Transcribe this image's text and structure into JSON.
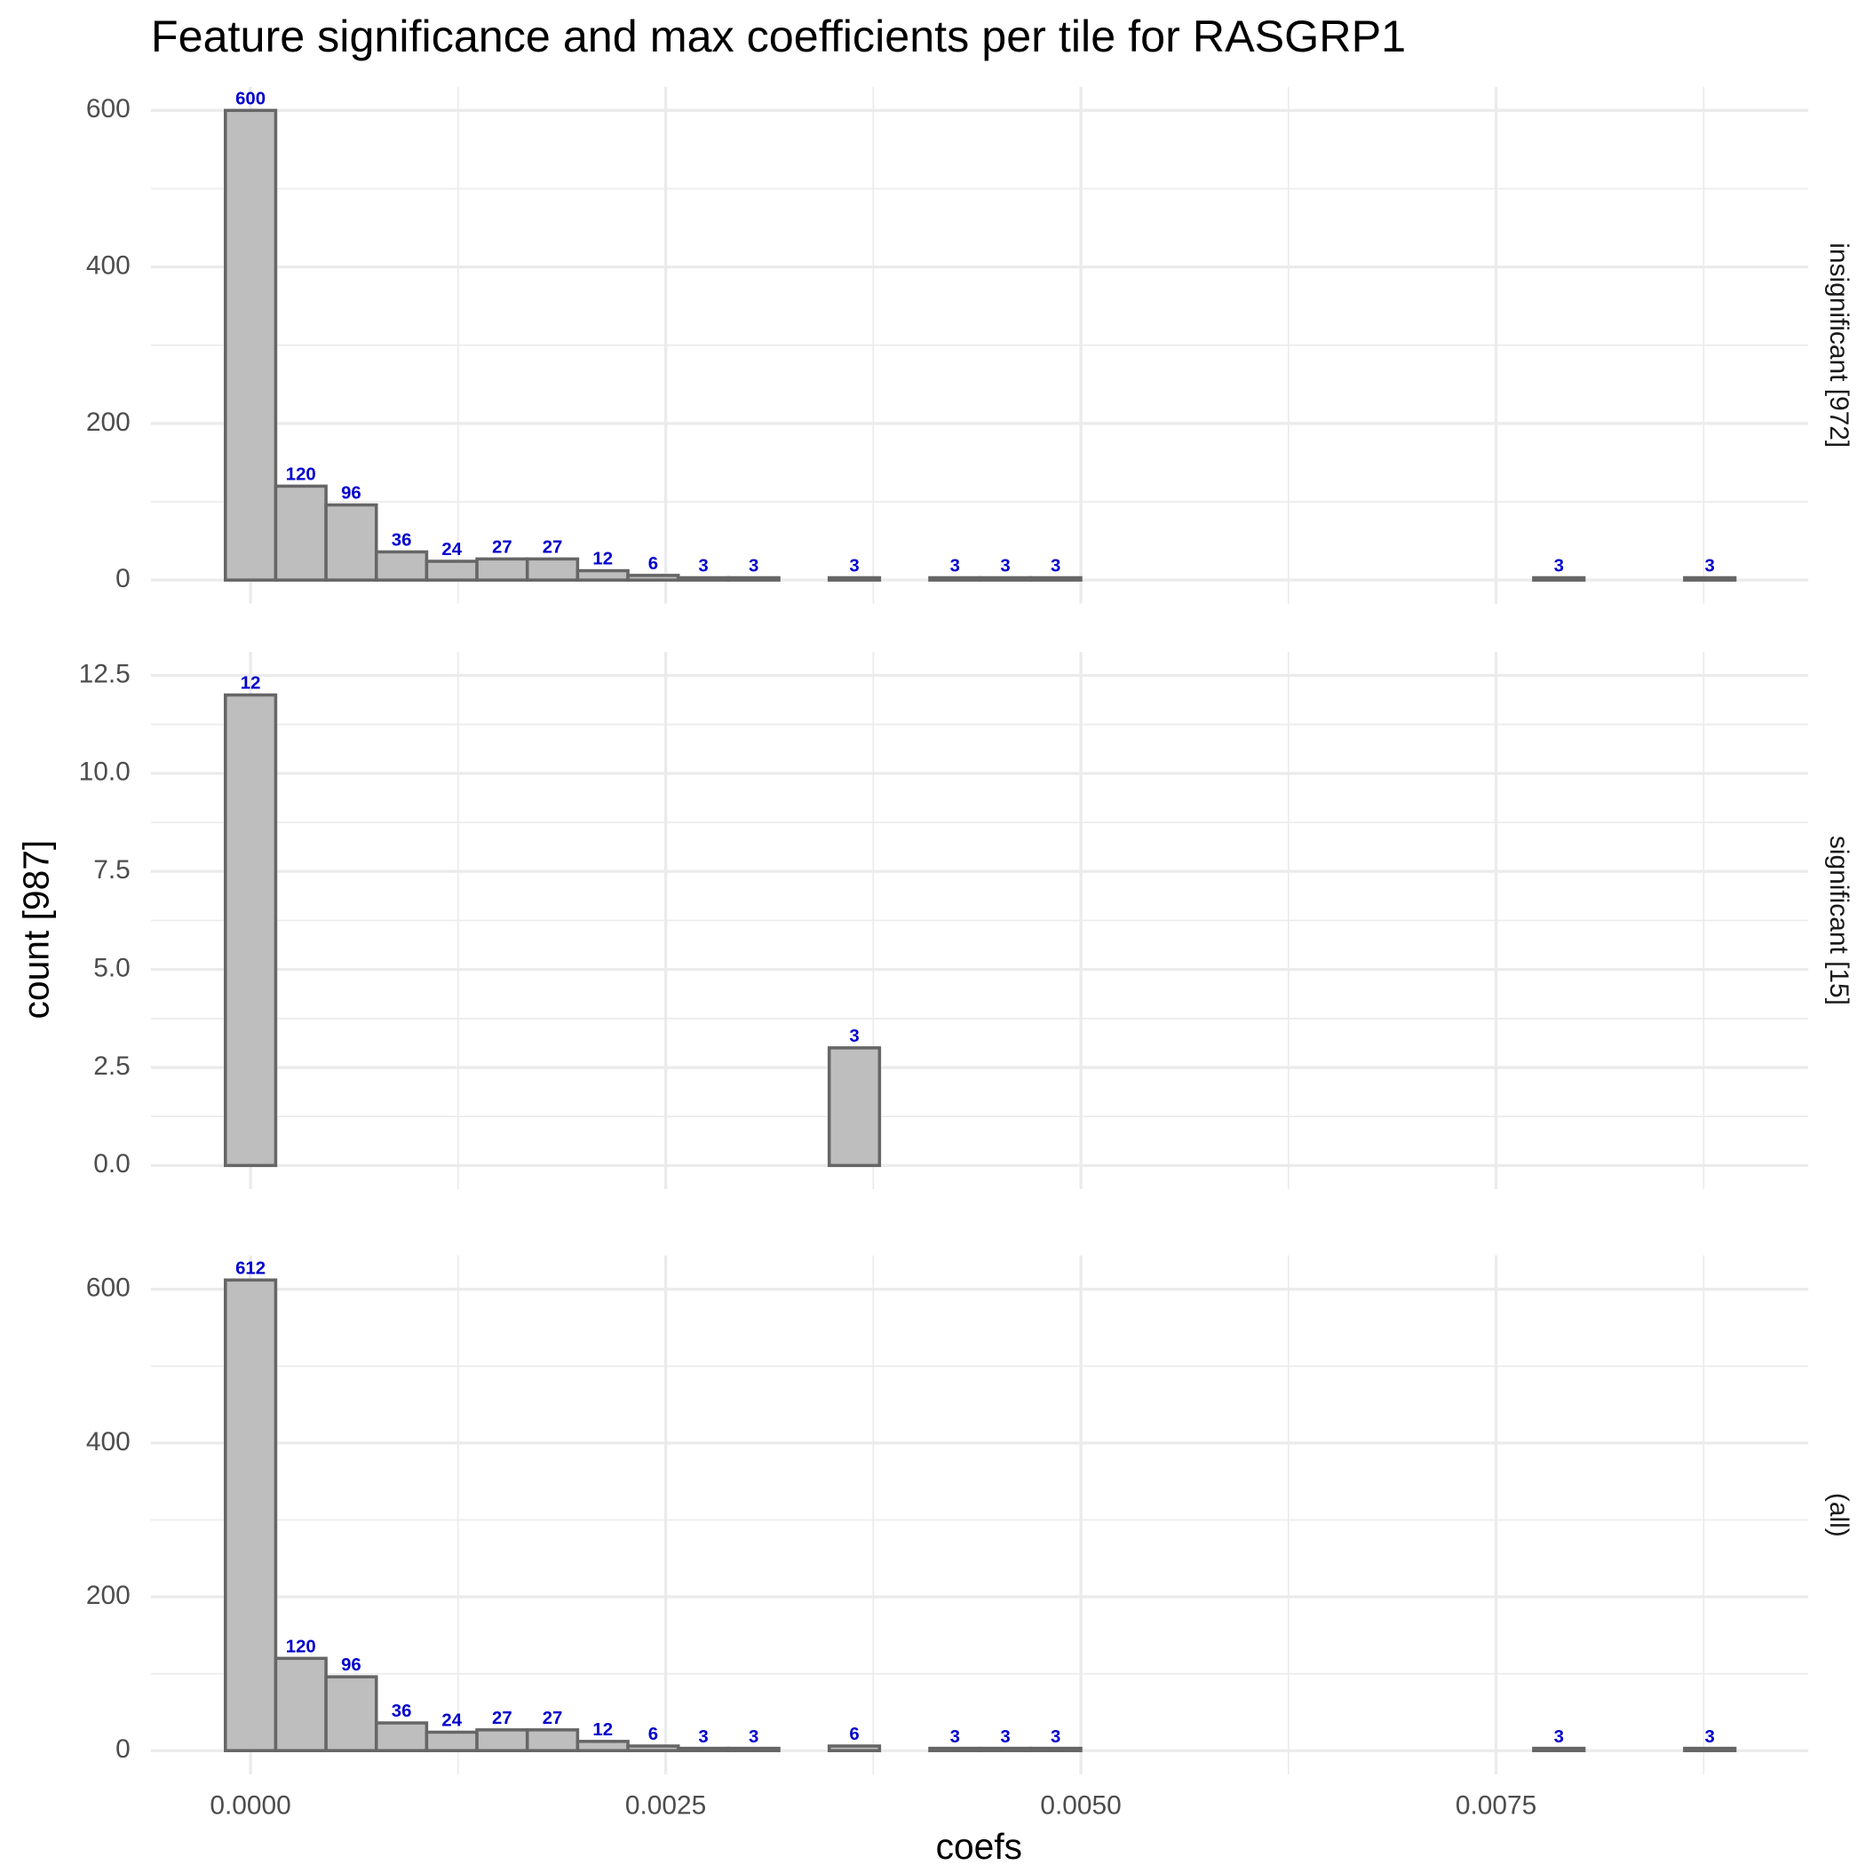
{
  "title": "Feature significance and max coefficients per tile for RASGRP1",
  "x_label": "coefs",
  "y_label": "count [987]",
  "chart_data": [
    {
      "type": "histogram",
      "facet_label": "insignificant [972]",
      "color": "#bebebe",
      "edge_color": "#666666",
      "label_color": "#0000cc",
      "bins": [
        -0.0001515,
        0.0001515,
        0.0004545,
        0.0007575,
        0.0010605,
        0.0013635,
        0.0016665,
        0.0019695,
        0.0022725,
        0.0025755,
        0.0028785,
        0.0031815,
        0.0034845,
        0.0037875,
        0.0040905,
        0.0043935,
        0.0046965,
        0.0049995,
        0.0053025,
        0.0056055,
        0.0059085,
        0.0062115,
        0.0065145,
        0.0068175,
        0.0071205,
        0.0074235,
        0.0077265,
        0.0080295,
        0.0083325,
        0.0086355,
        0.0089385
      ],
      "counts": [
        600,
        120,
        96,
        36,
        24,
        27,
        27,
        12,
        6,
        3,
        3,
        0,
        3,
        0,
        3,
        3,
        3,
        0,
        0,
        0,
        0,
        0,
        0,
        0,
        0,
        0,
        3,
        0,
        0,
        3
      ],
      "xlim": [
        -0.0006,
        0.00938
      ],
      "xticks": [
        {
          "value": 0,
          "label": "0.0000"
        },
        0.0025,
        {
          "value": 0.005,
          "label": "0.0050"
        },
        0.0075
      ],
      "minor_xticks": [
        0.00125,
        0.00375,
        0.00625,
        0.00875
      ],
      "ylim": [
        -30,
        630
      ],
      "yticks": [
        0,
        200,
        400,
        600
      ],
      "minor_yticks": [
        100,
        300,
        500
      ],
      "grid": true
    },
    {
      "type": "histogram",
      "facet_label": "significant [15]",
      "color": "#bebebe",
      "edge_color": "#666666",
      "label_color": "#0000cc",
      "bins": [
        -0.0001515,
        0.0001515,
        0.0004545,
        0.0007575,
        0.0010605,
        0.0013635,
        0.0016665,
        0.0019695,
        0.0022725,
        0.0025755,
        0.0028785,
        0.0031815,
        0.0034845,
        0.0037875,
        0.0040905,
        0.0043935,
        0.0046965,
        0.0049995,
        0.0053025,
        0.0056055,
        0.0059085,
        0.0062115,
        0.0065145,
        0.0068175,
        0.0071205,
        0.0074235,
        0.0077265,
        0.0080295,
        0.0083325,
        0.0086355,
        0.0089385
      ],
      "counts": [
        12,
        0,
        0,
        0,
        0,
        0,
        0,
        0,
        0,
        0,
        0,
        0,
        3,
        0,
        0,
        0,
        0,
        0,
        0,
        0,
        0,
        0,
        0,
        0,
        0,
        0,
        0,
        0,
        0,
        0
      ],
      "xlim": [
        -0.0006,
        0.00938
      ],
      "xticks": [
        {
          "value": 0,
          "label": "0.0000"
        },
        0.0025,
        {
          "value": 0.005,
          "label": "0.0050"
        },
        0.0075
      ],
      "minor_xticks": [
        0.00125,
        0.00375,
        0.00625,
        0.00875
      ],
      "ylim": [
        -0.6,
        13.1
      ],
      "yticks": [
        {
          "value": 0,
          "label": "0.0"
        },
        2.5,
        {
          "value": 5,
          "label": "5.0"
        },
        7.5,
        {
          "value": 10,
          "label": "10.0"
        },
        12.5
      ],
      "minor_yticks": [
        1.25,
        3.75,
        6.25,
        8.75,
        11.25
      ],
      "grid": true
    },
    {
      "type": "histogram",
      "facet_label": "(all)",
      "color": "#bebebe",
      "edge_color": "#666666",
      "label_color": "#0000cc",
      "bins": [
        -0.0001515,
        0.0001515,
        0.0004545,
        0.0007575,
        0.0010605,
        0.0013635,
        0.0016665,
        0.0019695,
        0.0022725,
        0.0025755,
        0.0028785,
        0.0031815,
        0.0034845,
        0.0037875,
        0.0040905,
        0.0043935,
        0.0046965,
        0.0049995,
        0.0053025,
        0.0056055,
        0.0059085,
        0.0062115,
        0.0065145,
        0.0068175,
        0.0071205,
        0.0074235,
        0.0077265,
        0.0080295,
        0.0083325,
        0.0086355,
        0.0089385
      ],
      "counts": [
        612,
        120,
        96,
        36,
        24,
        27,
        27,
        12,
        6,
        3,
        3,
        0,
        6,
        0,
        3,
        3,
        3,
        0,
        0,
        0,
        0,
        0,
        0,
        0,
        0,
        0,
        3,
        0,
        0,
        3
      ],
      "xlim": [
        -0.0006,
        0.00938
      ],
      "xticks": [
        {
          "value": 0,
          "label": "0.0000"
        },
        0.0025,
        {
          "value": 0.005,
          "label": "0.0050"
        },
        0.0075
      ],
      "minor_xticks": [
        0.00125,
        0.00375,
        0.00625,
        0.00875
      ],
      "ylim": [
        -31,
        644
      ],
      "yticks": [
        0,
        200,
        400,
        600
      ],
      "minor_yticks": [
        100,
        300,
        500
      ],
      "grid": true
    }
  ]
}
